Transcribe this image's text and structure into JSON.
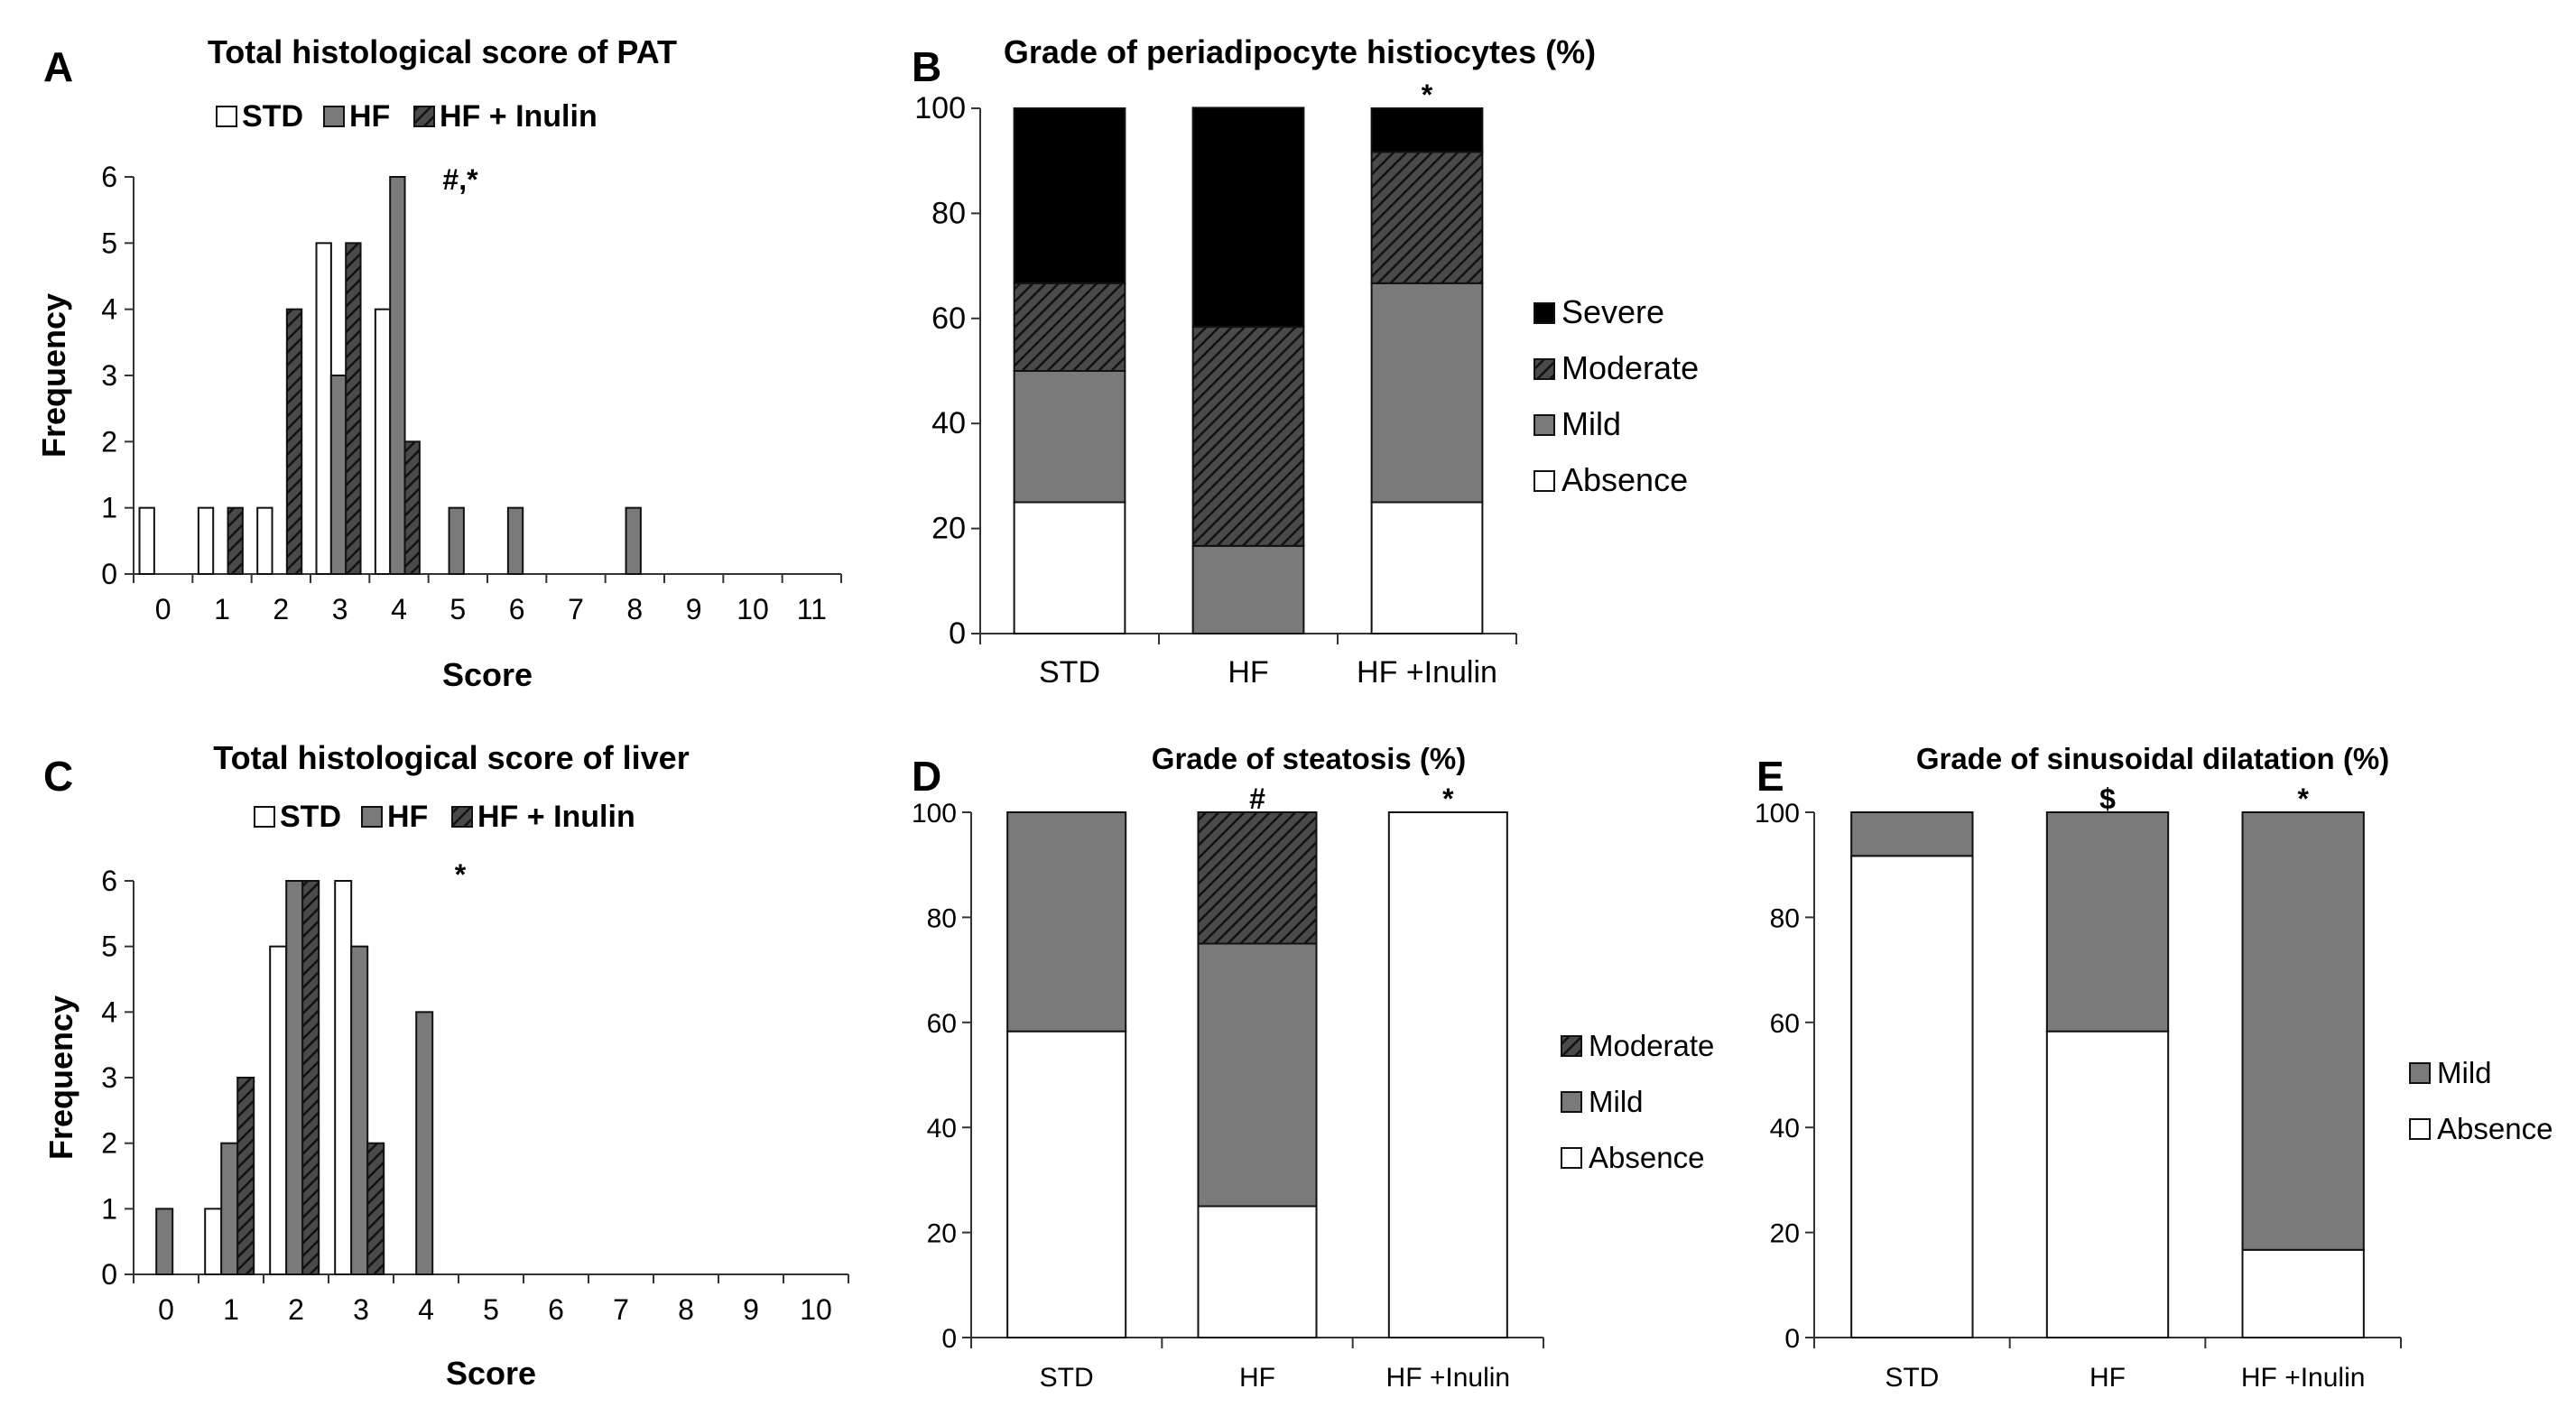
{
  "colors": {
    "std": "#ffffff",
    "hf": "#7a7a7a",
    "hf_inulin": "#3a3a3a",
    "severe": "#000000",
    "moderate": "#3a3a3a",
    "mild": "#7a7a7a",
    "absence": "#ffffff",
    "outline": "#111111"
  },
  "chart_data": [
    {
      "panel": "A",
      "type": "bar",
      "title": "Total histological score of PAT",
      "xlabel": "Score",
      "ylabel": "Frequency",
      "categories": [
        "0",
        "1",
        "2",
        "3",
        "4",
        "5",
        "6",
        "7",
        "8",
        "9",
        "10",
        "11"
      ],
      "ylim": [
        0,
        6
      ],
      "yticks": [
        "0",
        "1",
        "2",
        "3",
        "4",
        "5",
        "6"
      ],
      "legend": [
        "STD",
        "HF",
        "HF + Inulin"
      ],
      "legend_placement": "top-center",
      "annotations": [
        "#,*"
      ],
      "series": [
        {
          "name": "STD",
          "values": [
            1,
            1,
            1,
            5,
            4,
            0,
            0,
            0,
            0,
            0,
            0,
            0
          ]
        },
        {
          "name": "HF",
          "values": [
            0,
            0,
            0,
            3,
            6,
            1,
            1,
            0,
            1,
            0,
            0,
            0
          ]
        },
        {
          "name": "HF + Inulin",
          "values": [
            0,
            1,
            4,
            5,
            2,
            0,
            0,
            0,
            0,
            0,
            0,
            0
          ]
        }
      ]
    },
    {
      "panel": "B",
      "type": "bar",
      "stacked": true,
      "title": "Grade of periadipocyte histiocytes (%)",
      "categories": [
        "STD",
        "HF",
        "HF +Inulin"
      ],
      "ylim": [
        0,
        100
      ],
      "yticks": [
        "0",
        "20",
        "40",
        "60",
        "80",
        "100"
      ],
      "legend": [
        "Severe",
        "Moderate",
        "Mild",
        "Absence"
      ],
      "legend_placement": "right",
      "annotations": [
        "",
        "",
        "*"
      ],
      "series": [
        {
          "name": "Absence",
          "values": [
            25,
            0,
            25
          ]
        },
        {
          "name": "Mild",
          "values": [
            25,
            16.7,
            41.7
          ]
        },
        {
          "name": "Moderate",
          "values": [
            16.7,
            41.7,
            25
          ]
        },
        {
          "name": "Severe",
          "values": [
            33.3,
            41.7,
            8.3
          ]
        }
      ]
    },
    {
      "panel": "C",
      "type": "bar",
      "title": "Total histological score of liver",
      "xlabel": "Score",
      "ylabel": "Frequency",
      "categories": [
        "0",
        "1",
        "2",
        "3",
        "4",
        "5",
        "6",
        "7",
        "8",
        "9",
        "10"
      ],
      "ylim": [
        0,
        6
      ],
      "yticks": [
        "0",
        "1",
        "2",
        "3",
        "4",
        "5",
        "6"
      ],
      "legend": [
        "STD",
        "HF",
        "HF + Inulin"
      ],
      "legend_placement": "top-center",
      "annotations": [
        "*"
      ],
      "series": [
        {
          "name": "STD",
          "values": [
            0,
            1,
            5,
            6,
            0,
            0,
            0,
            0,
            0,
            0,
            0
          ]
        },
        {
          "name": "HF",
          "values": [
            1,
            2,
            6,
            5,
            4,
            0,
            0,
            0,
            0,
            0,
            0
          ]
        },
        {
          "name": "HF + Inulin",
          "values": [
            0,
            3,
            6,
            2,
            0,
            0,
            0,
            0,
            0,
            0,
            0
          ]
        }
      ]
    },
    {
      "panel": "D",
      "type": "bar",
      "stacked": true,
      "title": "Grade of steatosis (%)",
      "categories": [
        "STD",
        "HF",
        "HF +Inulin"
      ],
      "ylim": [
        0,
        100
      ],
      "yticks": [
        "0",
        "20",
        "40",
        "60",
        "80",
        "100"
      ],
      "legend": [
        "Moderate",
        "Mild",
        "Absence"
      ],
      "legend_placement": "right",
      "annotations": [
        "",
        "#",
        "*"
      ],
      "series": [
        {
          "name": "Absence",
          "values": [
            58.3,
            25,
            100
          ]
        },
        {
          "name": "Mild",
          "values": [
            41.7,
            50,
            0
          ]
        },
        {
          "name": "Moderate",
          "values": [
            0,
            25,
            0
          ]
        }
      ]
    },
    {
      "panel": "E",
      "type": "bar",
      "stacked": true,
      "title": "Grade of sinusoidal dilatation (%)",
      "categories": [
        "STD",
        "HF",
        "HF +Inulin"
      ],
      "ylim": [
        0,
        100
      ],
      "yticks": [
        "0",
        "20",
        "40",
        "60",
        "80",
        "100"
      ],
      "legend": [
        "Mild",
        "Absence"
      ],
      "legend_placement": "right",
      "annotations": [
        "",
        "$",
        "*"
      ],
      "series": [
        {
          "name": "Absence",
          "values": [
            91.7,
            58.3,
            16.7
          ]
        },
        {
          "name": "Mild",
          "values": [
            8.3,
            41.7,
            83.3
          ]
        }
      ]
    }
  ]
}
